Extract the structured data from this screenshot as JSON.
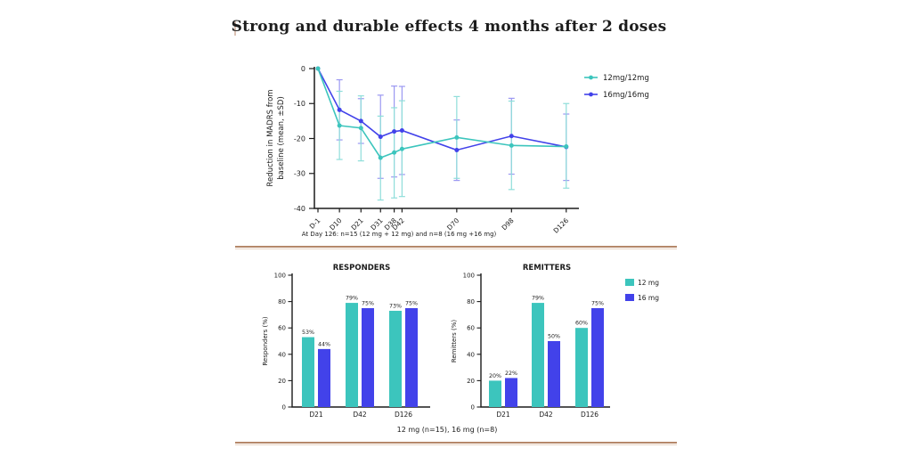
{
  "page": {
    "title": "Strong and durable effects 4 months after 2 doses",
    "line_caption": "At Day 126: n=15 (12 mg + 12 mg) and n=8 (16 mg +16 mg)",
    "bottom_caption": "12 mg (n=15), 16 mg (n=8)"
  },
  "colors": {
    "teal": "#3CC5BD",
    "teal_light": "#8FDEDA",
    "blue": "#4242EA",
    "blue_light": "#9B98F2",
    "axis": "#1b1b1b",
    "divider_dark": "#B5886A",
    "divider_light": "#E7D3C3",
    "cursor": "#DCC2B4"
  },
  "chart_data": [
    {
      "type": "line",
      "title": "",
      "ylabel": "Reduction in MADRS from baseline (mean, ±SD)",
      "ylabel_lines": [
        "Reduction in MADRS from",
        "baseline (mean, ±SD)"
      ],
      "x_categories": [
        "D-1",
        "D10",
        "D21",
        "D31",
        "D38",
        "D42",
        "D70",
        "D98",
        "D126"
      ],
      "x_days": [
        -1,
        10,
        21,
        31,
        38,
        42,
        70,
        98,
        126
      ],
      "ylim": [
        -40,
        0
      ],
      "yticks": [
        0,
        -10,
        -20,
        -30,
        -40
      ],
      "grid": false,
      "legend_position": "right",
      "series": [
        {
          "name": "12mg/12mg",
          "color_key": "teal",
          "values": [
            0,
            -16.3,
            -17,
            -25.5,
            -24,
            -23,
            -19.7,
            -22,
            -22.3
          ],
          "err_high": [
            null,
            -6.5,
            -7.8,
            -13.6,
            -11.2,
            -9.2,
            -8.0,
            -9.3,
            -10.0
          ],
          "err_low": [
            null,
            -26.0,
            -26.4,
            -37.6,
            -37.0,
            -36.6,
            -31.4,
            -34.6,
            -34.2
          ]
        },
        {
          "name": "16mg/16mg",
          "color_key": "blue",
          "values": [
            0,
            -11.8,
            -15,
            -19.5,
            -18,
            -17.7,
            -23.3,
            -19.3,
            -22.4
          ],
          "err_high": [
            null,
            -3.2,
            -8.6,
            -7.6,
            -5.0,
            -5.1,
            -14.7,
            -8.5,
            -13.0
          ],
          "err_low": [
            null,
            -20.4,
            -21.4,
            -31.4,
            -31.0,
            -30.3,
            -32.0,
            -30.2,
            -32.0
          ]
        }
      ]
    },
    {
      "type": "bar",
      "title": "RESPONDERS",
      "ylabel": "Responders (%)",
      "categories": [
        "D21",
        "D42",
        "D126"
      ],
      "ylim": [
        0,
        100
      ],
      "yticks": [
        0,
        20,
        40,
        60,
        80,
        100
      ],
      "series": [
        {
          "name": "12 mg",
          "color_key": "teal",
          "values": [
            53,
            79,
            73
          ],
          "labels": [
            "53%",
            "79%",
            "73%"
          ]
        },
        {
          "name": "16 mg",
          "color_key": "blue",
          "values": [
            44,
            75,
            75
          ],
          "labels": [
            "44%",
            "75%",
            "75%"
          ]
        }
      ]
    },
    {
      "type": "bar",
      "title": "REMITTERS",
      "ylabel": "Remitters (%)",
      "categories": [
        "D21",
        "D42",
        "D126"
      ],
      "ylim": [
        0,
        100
      ],
      "yticks": [
        0,
        20,
        40,
        60,
        80,
        100
      ],
      "series": [
        {
          "name": "12 mg",
          "color_key": "teal",
          "values": [
            20,
            79,
            60
          ],
          "labels": [
            "20%",
            "79%",
            "60%"
          ]
        },
        {
          "name": "16 mg",
          "color_key": "blue",
          "values": [
            22,
            50,
            75
          ],
          "labels": [
            "22%",
            "50%",
            "75%"
          ]
        }
      ]
    }
  ]
}
